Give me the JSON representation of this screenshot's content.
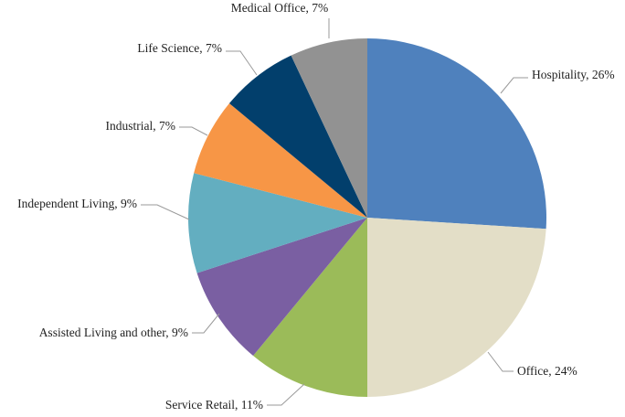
{
  "chart_data": {
    "type": "pie",
    "title": "",
    "start_angle_deg": 0,
    "direction": "clockwise",
    "legend": "none",
    "slices": [
      {
        "label": "Hospitality, 26%",
        "category": "Hospitality",
        "value": 26,
        "color": "#4F81BD"
      },
      {
        "label": "Office, 24%",
        "category": "Office",
        "value": 24,
        "color": "#E3DEC7"
      },
      {
        "label": "Service Retail, 11%",
        "category": "Service Retail",
        "value": 11,
        "color": "#9BBB59"
      },
      {
        "label": "Assisted Living and other, 9%",
        "category": "Assisted Living and other",
        "value": 9,
        "color": "#7A5FA2"
      },
      {
        "label": "Independent Living, 9%",
        "category": "Independent Living",
        "value": 9,
        "color": "#63AEC0"
      },
      {
        "label": "Industrial, 7%",
        "category": "Industrial",
        "value": 7,
        "color": "#F79646"
      },
      {
        "label": "Life Science, 7%",
        "category": "Life Science",
        "value": 7,
        "color": "#023F6C"
      },
      {
        "label": "Medical Office, 7%",
        "category": "Medical Office",
        "value": 7,
        "color": "#929292"
      }
    ]
  }
}
